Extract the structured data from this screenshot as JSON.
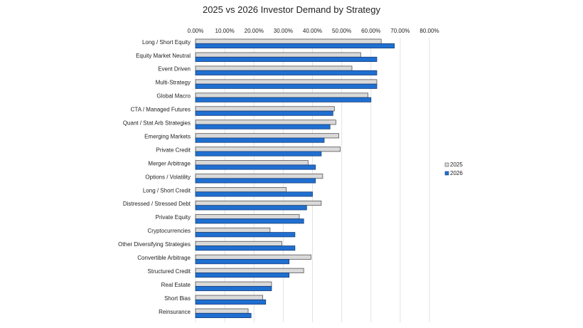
{
  "chart_data": {
    "type": "bar",
    "orientation": "horizontal",
    "title": "2025 vs 2026 Investor Demand by Strategy",
    "xlabel": "",
    "ylabel": "",
    "xlim": [
      0,
      80
    ],
    "x_ticks": [
      "0.00%",
      "10.00%",
      "20.00%",
      "30.00%",
      "40.00%",
      "50.00%",
      "60.00%",
      "70.00%",
      "80.00%"
    ],
    "x_axis_position": "top",
    "grid": true,
    "legend_position": "right",
    "categories": [
      "Long / Short Equity",
      "Equity Market Neutral",
      "Event Driven",
      "Multi-Strategy",
      "Global Macro",
      "CTA / Managed Futures",
      "Quant / Stat Arb Strategies",
      "Emerging Markets",
      "Private Credit",
      "Merger Arbitrage",
      "Options / Volatility",
      "Long / Short Credit",
      "Distressed / Stressed Debt",
      "Private Equity",
      "Cryptocurrencies",
      "Other Diversifying Strategies",
      "Convertible Arbitrage",
      "Structured Credit",
      "Real Estate",
      "Short Bias",
      "Reinsurance"
    ],
    "series": [
      {
        "name": "2025",
        "color": "#d9d9d9",
        "values": [
          63.5,
          56.5,
          53.5,
          62,
          59,
          47.5,
          48,
          49,
          49.5,
          38.5,
          43.5,
          31,
          43,
          35.5,
          25.5,
          29.5,
          39.5,
          37,
          26,
          23,
          18
        ]
      },
      {
        "name": "2026",
        "color": "#1f6fd1",
        "values": [
          68,
          62,
          62,
          62,
          60,
          47,
          46,
          44,
          43,
          41,
          41,
          40,
          38,
          37,
          34,
          34,
          32,
          32,
          26,
          24,
          19
        ]
      }
    ]
  }
}
